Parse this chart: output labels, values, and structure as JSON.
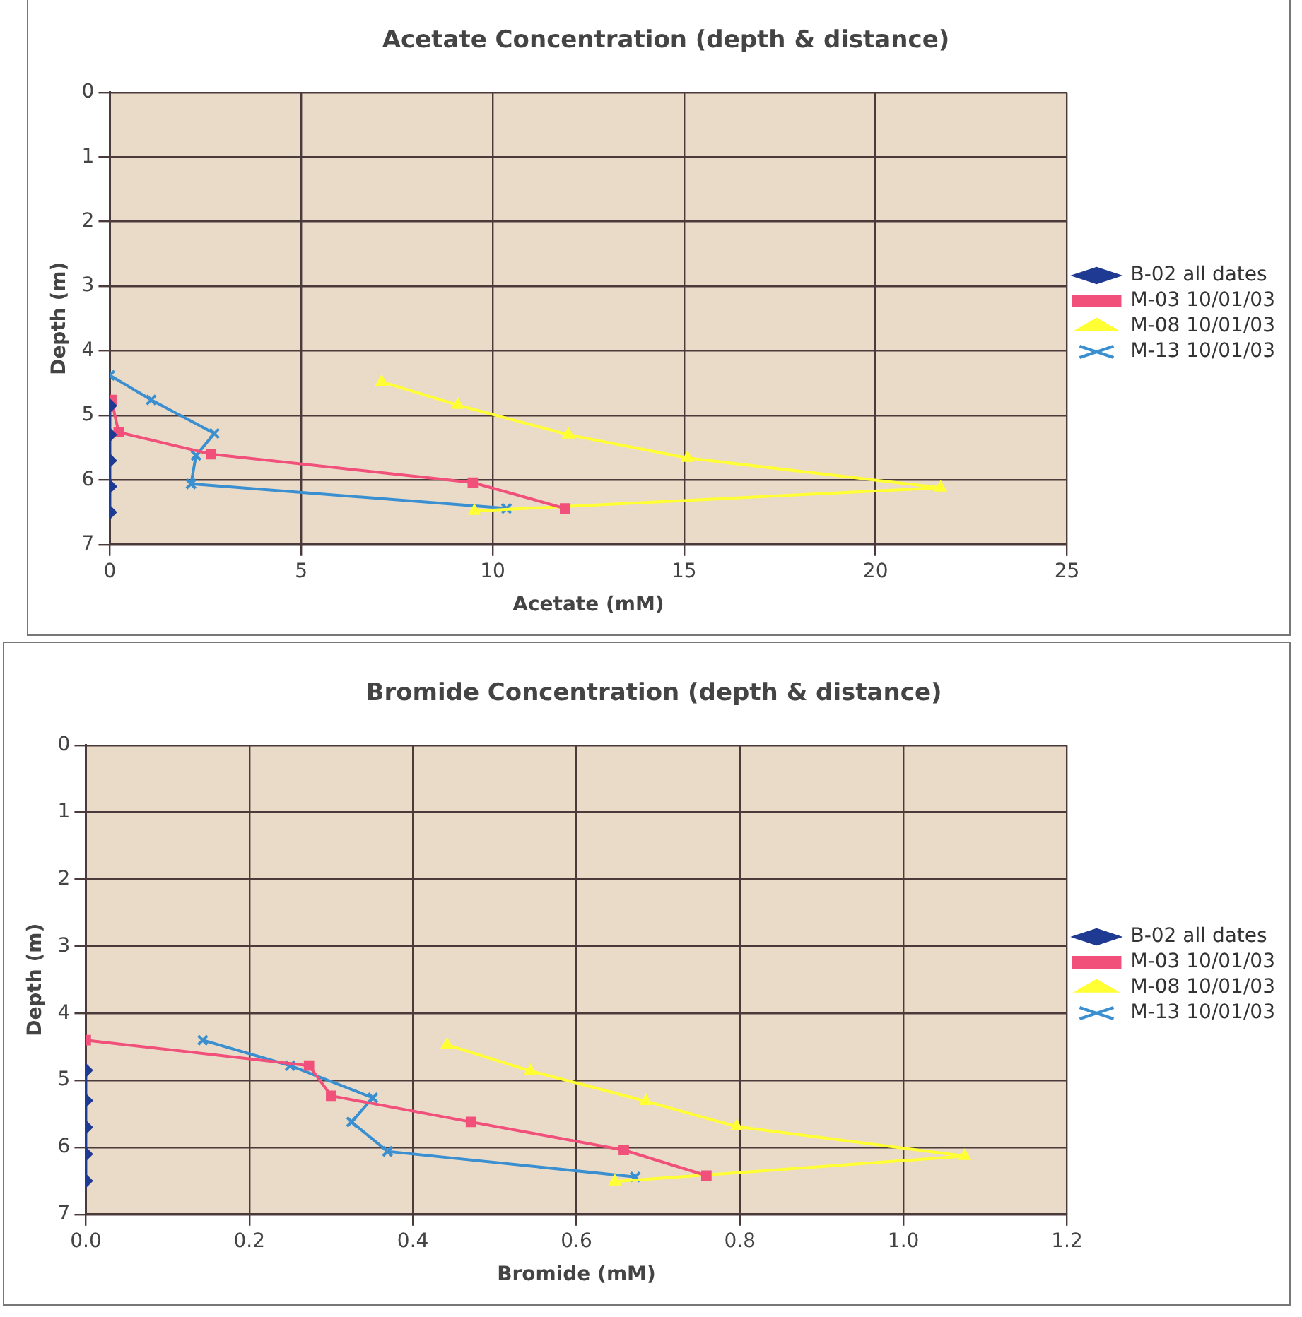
{
  "chart_data": [
    {
      "type": "line",
      "title": "Acetate Concentration (depth & distance)",
      "xlabel": "Acetate (mM)",
      "ylabel": "Depth (m)",
      "xlim": [
        0,
        25
      ],
      "xticks": [
        0,
        5,
        10,
        15,
        20,
        25
      ],
      "ylim": [
        7,
        0
      ],
      "yticks": [
        0,
        1,
        2,
        3,
        4,
        5,
        6,
        7
      ],
      "grid": true,
      "legend": "right",
      "series": [
        {
          "name": "B-02 all dates",
          "color": "#1f3a93",
          "marker": "diamond",
          "x": [
            0,
            0,
            0,
            0,
            0
          ],
          "values": [
            4.85,
            5.3,
            5.7,
            6.1,
            6.5
          ]
        },
        {
          "name": "M-03 10/01/03",
          "color": "#f0507a",
          "marker": "square",
          "x": [
            0.04,
            0.23,
            2.64,
            9.48,
            11.89
          ],
          "values": [
            4.76,
            5.26,
            5.6,
            6.04,
            6.44
          ]
        },
        {
          "name": "M-08 10/01/03",
          "color": "#ffff33",
          "marker": "triangle",
          "x": [
            7.1,
            9.09,
            11.98,
            15.09,
            21.7,
            9.52
          ],
          "values": [
            4.48,
            4.84,
            5.3,
            5.66,
            6.12,
            6.48
          ]
        },
        {
          "name": "M-13 10/01/03",
          "color": "#3a8fd0",
          "marker": "cross",
          "x": [
            0,
            1.08,
            2.73,
            2.25,
            2.12,
            10.36
          ],
          "values": [
            4.38,
            4.76,
            5.28,
            5.62,
            6.06,
            6.44
          ]
        }
      ]
    },
    {
      "type": "line",
      "title": "Bromide Concentration (depth & distance)",
      "xlabel": "Bromide (mM)",
      "ylabel": "Depth (m)",
      "xlim": [
        0,
        1.2
      ],
      "xticks": [
        {
          "value": 0,
          "label": "0.0"
        },
        {
          "value": 0.2,
          "label": "0.2"
        },
        {
          "value": 0.4,
          "label": "0.4"
        },
        {
          "value": 0.6,
          "label": "0.6"
        },
        {
          "value": 0.8,
          "label": "0.8"
        },
        {
          "value": 1,
          "label": "1.0"
        },
        {
          "value": 1.2,
          "label": "1.2"
        }
      ],
      "ylim": [
        7,
        0
      ],
      "yticks": [
        0,
        1,
        2,
        3,
        4,
        5,
        6,
        7
      ],
      "grid": true,
      "legend": "right",
      "series": [
        {
          "name": "B-02 all dates",
          "color": "#1f3a93",
          "marker": "diamond",
          "x": [
            0,
            0,
            0,
            0,
            0
          ],
          "values": [
            4.85,
            5.3,
            5.7,
            6.1,
            6.5
          ]
        },
        {
          "name": "M-03 10/01/03",
          "color": "#f0507a",
          "marker": "square",
          "x": [
            0,
            0.273,
            0.3,
            0.471,
            0.658,
            0.759
          ],
          "values": [
            4.4,
            4.78,
            5.23,
            5.62,
            6.04,
            6.42
          ]
        },
        {
          "name": "M-08 10/01/03",
          "color": "#ffff33",
          "marker": "triangle",
          "x": [
            0.442,
            0.544,
            0.685,
            0.796,
            1.075,
            0.647
          ],
          "values": [
            4.47,
            4.86,
            5.31,
            5.69,
            6.13,
            6.51
          ]
        },
        {
          "name": "M-13 10/01/03",
          "color": "#3a8fd0",
          "marker": "cross",
          "x": [
            0.143,
            0.25,
            0.351,
            0.325,
            0.369,
            0.672
          ],
          "values": [
            4.4,
            4.78,
            5.26,
            5.62,
            6.06,
            6.44
          ]
        }
      ]
    }
  ]
}
